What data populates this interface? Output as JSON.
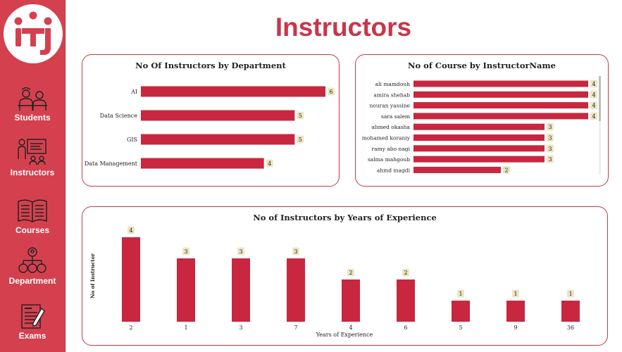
{
  "page_title": "Instructors",
  "sidebar": {
    "logo_icon": "iti-logo-icon",
    "items": [
      {
        "label": "Students",
        "icon": "students-icon"
      },
      {
        "label": "Instructors",
        "icon": "instructors-icon"
      },
      {
        "label": "Courses",
        "icon": "courses-icon"
      },
      {
        "label": "Department",
        "icon": "department-icon"
      },
      {
        "label": "Exams",
        "icon": "exams-icon"
      }
    ]
  },
  "colors": {
    "sidebar_bg": "#d5404f",
    "bar": "#c8273f",
    "title": "#c8364a",
    "label_bg": "#ede6c4"
  },
  "chart_data": [
    {
      "type": "bar",
      "orientation": "horizontal",
      "title": "No Of Instructors by Department",
      "categories": [
        "AI",
        "Data Science",
        "GIS",
        "Data Management"
      ],
      "values": [
        6,
        5,
        5,
        4
      ]
    },
    {
      "type": "bar",
      "orientation": "horizontal",
      "title": "No of Course by InstructorName",
      "categories": [
        "ali mamdouh",
        "amira shehab",
        "nouran yassine",
        "sara salem",
        "ahmed okasha",
        "mohamed koraniy",
        "ramy abo nagi",
        "salma mahgoub",
        "ahmd magdi"
      ],
      "values": [
        4,
        4,
        4,
        4,
        3,
        3,
        3,
        3,
        2
      ]
    },
    {
      "type": "bar",
      "title": "No of Instructors by Years of Experience",
      "xlabel": "Years of Experience",
      "ylabel": "No of Instructor",
      "categories": [
        "2",
        "1",
        "3",
        "7",
        "4",
        "6",
        "5",
        "9",
        "36"
      ],
      "values": [
        4,
        3,
        3,
        3,
        2,
        2,
        1,
        1,
        1
      ]
    }
  ]
}
